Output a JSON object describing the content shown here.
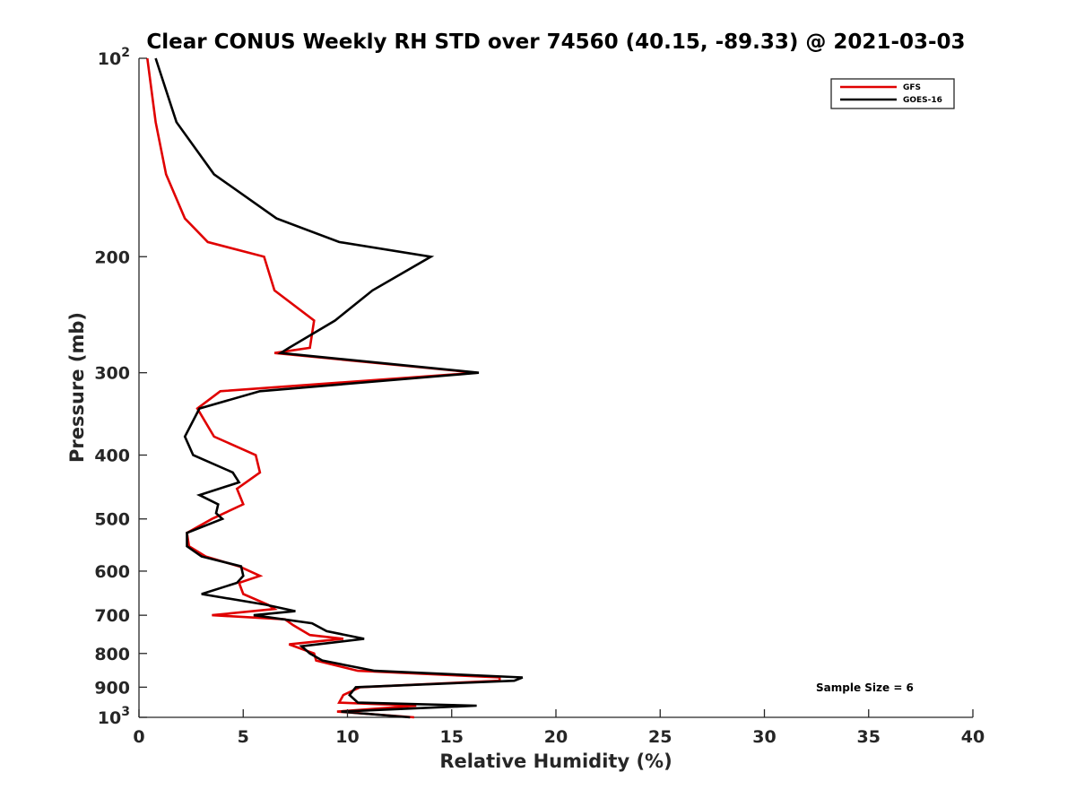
{
  "chart_data": {
    "type": "line",
    "title": "Clear CONUS Weekly RH STD over 74560 (40.15, -89.33) @ 2021-03-03",
    "xlabel": "Relative Humidity (%)",
    "ylabel": "Pressure (mb)",
    "xlim": [
      0,
      40
    ],
    "ylim": [
      100,
      1000
    ],
    "y_scale": "log",
    "y_reversed": true,
    "grid": false,
    "legend_position": "top-right",
    "annotation": "Sample Size = 6",
    "x_ticks": [
      "0",
      "5",
      "10",
      "15",
      "20",
      "25",
      "30",
      "35",
      "40"
    ],
    "y_ticks": [
      {
        "value": 100,
        "base": "10",
        "exp": "2"
      },
      {
        "value": 200,
        "label": "200"
      },
      {
        "value": 300,
        "label": "300"
      },
      {
        "value": 400,
        "label": "400"
      },
      {
        "value": 500,
        "label": "500"
      },
      {
        "value": 600,
        "label": "600"
      },
      {
        "value": 700,
        "label": "700"
      },
      {
        "value": 800,
        "label": "800"
      },
      {
        "value": 900,
        "label": "900"
      },
      {
        "value": 1000,
        "base": "10",
        "exp": "3"
      }
    ],
    "series": [
      {
        "name": "GFS",
        "color": "#e00000",
        "points": [
          [
            0.4,
            100
          ],
          [
            0.8,
            125
          ],
          [
            1.3,
            150
          ],
          [
            2.2,
            175
          ],
          [
            3.3,
            190
          ],
          [
            6.0,
            200
          ],
          [
            6.5,
            225
          ],
          [
            8.4,
            250
          ],
          [
            8.2,
            275
          ],
          [
            6.5,
            280
          ],
          [
            16.2,
            300
          ],
          [
            3.9,
            320
          ],
          [
            2.8,
            340
          ],
          [
            3.6,
            375
          ],
          [
            5.6,
            400
          ],
          [
            5.8,
            425
          ],
          [
            4.7,
            450
          ],
          [
            5.0,
            475
          ],
          [
            3.5,
            500
          ],
          [
            2.3,
            525
          ],
          [
            2.4,
            550
          ],
          [
            3.2,
            570
          ],
          [
            4.8,
            590
          ],
          [
            5.8,
            610
          ],
          [
            4.8,
            625
          ],
          [
            5.0,
            650
          ],
          [
            6.2,
            675
          ],
          [
            6.5,
            685
          ],
          [
            3.5,
            700
          ],
          [
            7.0,
            710
          ],
          [
            7.4,
            725
          ],
          [
            8.2,
            750
          ],
          [
            9.8,
            760
          ],
          [
            7.2,
            775
          ],
          [
            8.4,
            800
          ],
          [
            8.5,
            820
          ],
          [
            10.5,
            850
          ],
          [
            17.3,
            870
          ],
          [
            17.3,
            880
          ],
          [
            10.6,
            900
          ],
          [
            9.8,
            925
          ],
          [
            9.6,
            950
          ],
          [
            13.3,
            960
          ],
          [
            9.5,
            980
          ],
          [
            13.2,
            1000
          ]
        ]
      },
      {
        "name": "GOES-16",
        "color": "#000000",
        "points": [
          [
            0.8,
            100
          ],
          [
            1.8,
            125
          ],
          [
            3.6,
            150
          ],
          [
            6.6,
            175
          ],
          [
            9.6,
            190
          ],
          [
            14.0,
            200
          ],
          [
            11.2,
            225
          ],
          [
            9.4,
            250
          ],
          [
            7.2,
            275
          ],
          [
            6.8,
            280
          ],
          [
            16.3,
            300
          ],
          [
            5.8,
            320
          ],
          [
            2.9,
            340
          ],
          [
            2.2,
            375
          ],
          [
            2.6,
            400
          ],
          [
            4.5,
            425
          ],
          [
            4.8,
            440
          ],
          [
            2.9,
            460
          ],
          [
            3.8,
            475
          ],
          [
            3.7,
            490
          ],
          [
            4.0,
            500
          ],
          [
            2.3,
            525
          ],
          [
            2.3,
            550
          ],
          [
            3.0,
            570
          ],
          [
            4.9,
            590
          ],
          [
            5.0,
            610
          ],
          [
            4.7,
            625
          ],
          [
            3.0,
            650
          ],
          [
            6.1,
            675
          ],
          [
            7.5,
            690
          ],
          [
            5.5,
            700
          ],
          [
            8.3,
            720
          ],
          [
            9.0,
            740
          ],
          [
            10.8,
            760
          ],
          [
            7.8,
            780
          ],
          [
            8.2,
            800
          ],
          [
            8.8,
            820
          ],
          [
            11.3,
            850
          ],
          [
            18.4,
            870
          ],
          [
            18.0,
            880
          ],
          [
            10.4,
            900
          ],
          [
            10.1,
            925
          ],
          [
            10.5,
            950
          ],
          [
            16.2,
            960
          ],
          [
            9.7,
            980
          ],
          [
            13.0,
            1000
          ]
        ]
      }
    ]
  }
}
